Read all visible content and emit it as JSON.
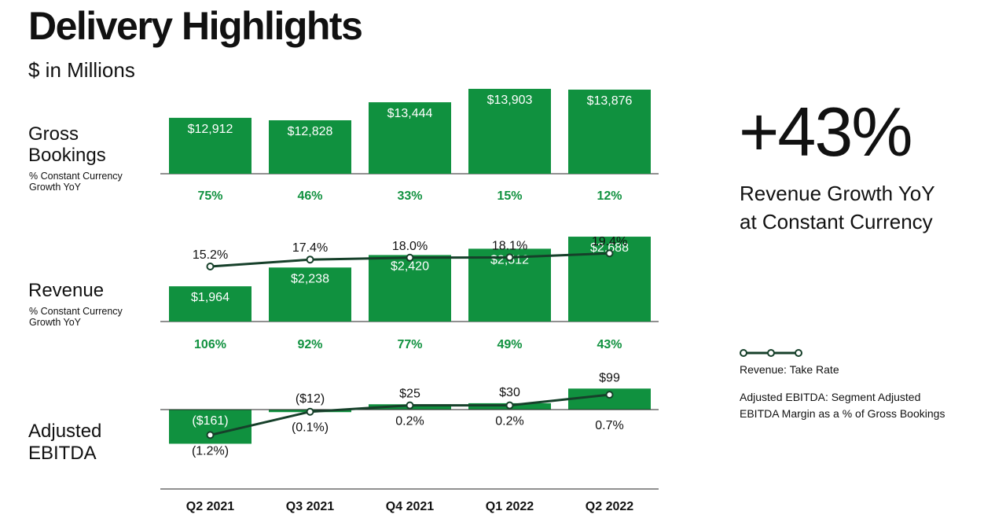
{
  "title": "Delivery Highlights",
  "subtitle": "$ in Millions",
  "rows": {
    "gross_bookings": {
      "label_line1": "Gross",
      "label_line2": "Bookings",
      "sub_line1": "% Constant Currency",
      "sub_line2": "Growth YoY"
    },
    "revenue": {
      "label": "Revenue",
      "sub_line1": "% Constant Currency",
      "sub_line2": "Growth YoY"
    },
    "adjusted_ebitda": {
      "label_line1": "Adjusted",
      "label_line2": "EBITDA"
    }
  },
  "kpi": {
    "value": "+43%",
    "caption_line1": "Revenue Growth YoY",
    "caption_line2": "at Constant Currency"
  },
  "legend": {
    "take_rate": "Revenue: Take Rate",
    "ebitda_line1": "Adjusted EBITDA: Segment Adjusted",
    "ebitda_line2": "EBITDA Margin as a % of Gross Bookings"
  },
  "colors": {
    "bar": "#10913f",
    "growth_text": "#10913f",
    "line": "#16402a",
    "axis": "#222222"
  },
  "chart_data": {
    "type": "bar",
    "categories": [
      "Q2 2021",
      "Q3 2021",
      "Q4 2021",
      "Q1 2022",
      "Q2 2022"
    ],
    "gross_bookings": {
      "values": [
        12912,
        12828,
        13444,
        13903,
        13876
      ],
      "labels": [
        "$12,912",
        "$12,828",
        "$13,444",
        "$13,903",
        "$13,876"
      ],
      "growth": [
        "75%",
        "46%",
        "33%",
        "15%",
        "12%"
      ]
    },
    "revenue": {
      "values": [
        1964,
        2238,
        2420,
        2512,
        2688
      ],
      "labels": [
        "$1,964",
        "$2,238",
        "$2,420",
        "$2,512",
        "$2,688"
      ],
      "growth": [
        "106%",
        "92%",
        "77%",
        "49%",
        "43%"
      ],
      "take_rate": [
        15.2,
        17.4,
        18.0,
        18.1,
        19.4
      ],
      "take_rate_labels": [
        "15.2%",
        "17.4%",
        "18.0%",
        "18.1%",
        "19.4%"
      ]
    },
    "adjusted_ebitda": {
      "values": [
        -161,
        -12,
        25,
        30,
        99
      ],
      "labels": [
        "($161)",
        "($12)",
        "$25",
        "$30",
        "$99"
      ],
      "margin": [
        -1.2,
        -0.1,
        0.2,
        0.2,
        0.7
      ],
      "margin_labels": [
        "(1.2%)",
        "(0.1%)",
        "0.2%",
        "0.2%",
        "0.7%"
      ]
    }
  }
}
